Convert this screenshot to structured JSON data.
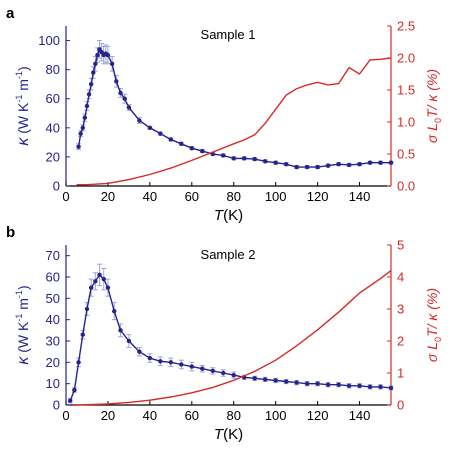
{
  "colors": {
    "kappa": "#26238c",
    "ratio": "#d42a2a",
    "errorbar": "#9fa3d8",
    "axis": "#000000"
  },
  "chart_data": [
    {
      "type": "line",
      "panel_label": "a",
      "annotation": "Sample 1",
      "xlabel_var": "T",
      "xlabel_unit": "(K)",
      "x_ticks": [
        "0",
        "20",
        "40",
        "60",
        "80",
        "100",
        "120",
        "140"
      ],
      "xlim": [
        0,
        155
      ],
      "ylabel_left": "κ (W K⁻¹ m⁻¹)",
      "ylabel_left_parts": [
        "κ",
        " (W K",
        "-1",
        " m",
        "-1",
        ")"
      ],
      "ylim_left": [
        0,
        110
      ],
      "y_ticks_left": [
        "0",
        "20",
        "40",
        "60",
        "80",
        "100"
      ],
      "ylabel_right": "σ L₀T/ κ (%)",
      "ylabel_right_parts": [
        "σ L",
        "0",
        "T/ κ (%)"
      ],
      "ylim_right": [
        0,
        2.5
      ],
      "y_ticks_right": [
        "0.0",
        "0.5",
        "1.0",
        "1.5",
        "2.0",
        "2.5"
      ],
      "grid": false,
      "series": [
        {
          "axis": "left",
          "style": "line+markers+errorbars",
          "x": [
            6,
            7,
            8,
            9,
            10,
            11,
            12,
            13,
            14,
            15,
            16,
            17,
            18,
            19,
            20,
            22,
            24,
            26,
            28,
            30,
            35,
            40,
            45,
            50,
            55,
            60,
            65,
            70,
            75,
            80,
            85,
            90,
            95,
            100,
            105,
            110,
            115,
            120,
            125,
            130,
            135,
            140,
            145,
            150,
            155
          ],
          "y": [
            27,
            36,
            40,
            47,
            55,
            63,
            70,
            78,
            84,
            90,
            94,
            92,
            90,
            91,
            90,
            84,
            72,
            64,
            60,
            54,
            45,
            40,
            36,
            32,
            29,
            26,
            24,
            22,
            21,
            19,
            19,
            18.5,
            17,
            16,
            15,
            13,
            13,
            13,
            14,
            15,
            14.5,
            15,
            16,
            16,
            16
          ],
          "err": [
            2,
            2,
            2,
            2.5,
            3,
            3,
            4,
            4,
            5,
            5,
            6,
            6,
            6,
            6,
            6,
            5,
            4,
            3,
            3,
            2,
            2,
            1,
            1,
            1,
            1,
            1,
            1,
            1,
            1,
            1,
            1,
            1,
            1,
            1,
            1,
            1,
            1,
            1,
            1,
            1,
            1,
            1,
            1,
            1,
            1
          ]
        },
        {
          "axis": "right",
          "style": "line",
          "x": [
            5,
            10,
            20,
            30,
            40,
            50,
            60,
            70,
            80,
            85,
            90,
            95,
            100,
            105,
            110,
            115,
            120,
            125,
            130,
            135,
            140,
            145,
            150,
            155
          ],
          "y": [
            0.02,
            0.02,
            0.04,
            0.1,
            0.18,
            0.28,
            0.4,
            0.53,
            0.66,
            0.72,
            0.8,
            0.98,
            1.2,
            1.42,
            1.52,
            1.58,
            1.62,
            1.58,
            1.6,
            1.85,
            1.75,
            1.97,
            1.98,
            2.0
          ]
        }
      ]
    },
    {
      "type": "line",
      "panel_label": "b",
      "annotation": "Sample 2",
      "xlabel_var": "T",
      "xlabel_unit": "(K)",
      "x_ticks": [
        "0",
        "20",
        "40",
        "60",
        "80",
        "100",
        "120",
        "140"
      ],
      "xlim": [
        0,
        155
      ],
      "ylabel_left": "κ (W K⁻¹ m⁻¹)",
      "ylabel_left_parts": [
        "κ",
        " (W K",
        "-1",
        " m",
        "-1",
        ")"
      ],
      "ylim_left": [
        0,
        75
      ],
      "y_ticks_left": [
        "0",
        "10",
        "20",
        "30",
        "40",
        "50",
        "60",
        "70"
      ],
      "ylabel_right": "σ L₀T/ κ (%)",
      "ylabel_right_parts": [
        "σ L",
        "0",
        "T/ κ (%)"
      ],
      "ylim_right": [
        0,
        5
      ],
      "y_ticks_right": [
        "0",
        "1",
        "2",
        "3",
        "4",
        "5"
      ],
      "grid": false,
      "series": [
        {
          "axis": "left",
          "style": "line+markers+errorbars",
          "x": [
            2,
            4,
            6,
            8,
            10,
            12,
            14,
            16,
            18,
            20,
            23,
            26,
            30,
            35,
            40,
            45,
            50,
            55,
            60,
            65,
            70,
            75,
            80,
            85,
            90,
            95,
            100,
            105,
            110,
            115,
            120,
            125,
            130,
            135,
            140,
            145,
            150,
            155
          ],
          "y": [
            2,
            7,
            20,
            33,
            45,
            55,
            58,
            61,
            59,
            55,
            44,
            35,
            30,
            25,
            22,
            20.5,
            20,
            19,
            18,
            17,
            16,
            15,
            14,
            13,
            12.5,
            12,
            11.5,
            11,
            10.5,
            10,
            10,
            9.5,
            9.5,
            9,
            9,
            8.5,
            8.5,
            8
          ],
          "err": [
            1,
            1,
            2,
            2,
            3,
            4,
            4,
            5,
            5,
            4,
            4,
            3,
            3,
            2,
            2,
            2,
            2,
            2,
            2,
            1.5,
            1.5,
            1.5,
            1.5,
            1,
            1,
            1,
            1,
            1,
            1,
            1,
            1,
            1,
            1,
            1,
            1,
            1,
            1,
            1
          ]
        },
        {
          "axis": "right",
          "style": "line",
          "x": [
            3,
            10,
            20,
            30,
            40,
            50,
            60,
            70,
            80,
            90,
            100,
            110,
            120,
            130,
            140,
            150,
            155
          ],
          "y": [
            0,
            0.01,
            0.03,
            0.08,
            0.15,
            0.25,
            0.38,
            0.55,
            0.77,
            1.05,
            1.4,
            1.85,
            2.35,
            2.9,
            3.5,
            3.95,
            4.2
          ]
        }
      ]
    }
  ]
}
